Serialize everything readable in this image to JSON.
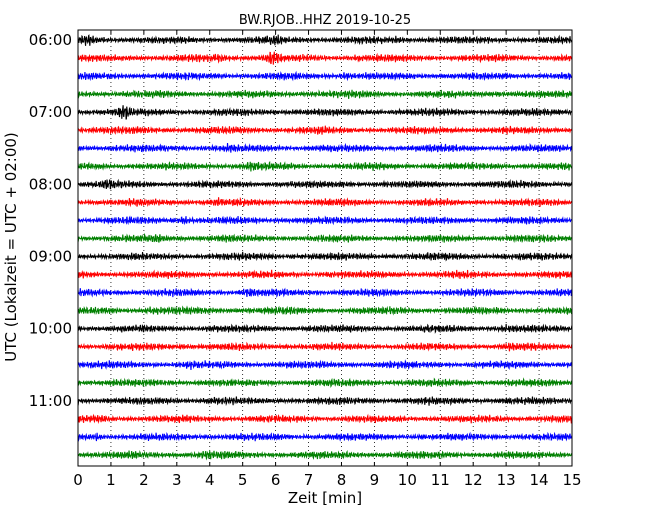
{
  "chart_data": {
    "type": "line",
    "title": "BW.RJOB..HHZ 2019-10-25",
    "xlabel": "Zeit  [min]",
    "ylabel": "UTC (Lokalzeit = UTC + 02:00)",
    "xlim": [
      0,
      15
    ],
    "x_ticks": [
      0,
      1,
      2,
      3,
      4,
      5,
      6,
      7,
      8,
      9,
      10,
      11,
      12,
      13,
      14,
      15
    ],
    "y_ticks": [
      "06:00",
      "07:00",
      "08:00",
      "09:00",
      "10:00",
      "11:00"
    ],
    "grid": "vertical dotted",
    "trace_minutes": 15,
    "start_time": "06:00",
    "traces": [
      {
        "time": "06:00",
        "color": "#000000",
        "events": [
          [
            0.3,
            1.8
          ],
          [
            6.0,
            1.5
          ],
          [
            9.7,
            1.2
          ],
          [
            1.3,
            0.9
          ]
        ]
      },
      {
        "time": "06:15",
        "color": "#ff0000",
        "events": [
          [
            5.9,
            2.4
          ],
          [
            4.3,
            1.4
          ],
          [
            8.5,
            1.1
          ]
        ]
      },
      {
        "time": "06:30",
        "color": "#0000ff",
        "events": [
          [
            8.1,
            1.3
          ],
          [
            1.6,
            0.9
          ]
        ]
      },
      {
        "time": "06:45",
        "color": "#008000",
        "events": [
          [
            12.8,
            1.2
          ],
          [
            7.0,
            1.0
          ]
        ]
      },
      {
        "time": "07:00",
        "color": "#000000",
        "events": [
          [
            1.4,
            2.2
          ],
          [
            6.6,
            1.1
          ],
          [
            13.7,
            1.0
          ]
        ]
      },
      {
        "time": "07:15",
        "color": "#ff0000",
        "events": [
          [
            7.4,
            1.0
          ],
          [
            3.8,
            0.9
          ]
        ]
      },
      {
        "time": "07:30",
        "color": "#0000ff",
        "events": [
          [
            4.6,
            1.2
          ],
          [
            10.6,
            1.0
          ]
        ]
      },
      {
        "time": "07:45",
        "color": "#008000",
        "events": [
          [
            5.3,
            1.4
          ],
          [
            2.2,
            0.9
          ]
        ]
      },
      {
        "time": "08:00",
        "color": "#000000",
        "events": [
          [
            0.9,
            1.6
          ],
          [
            8.2,
            1.1
          ]
        ]
      },
      {
        "time": "08:15",
        "color": "#ff0000",
        "events": [
          [
            4.2,
            1.3
          ],
          [
            12.2,
            1.0
          ]
        ]
      },
      {
        "time": "08:30",
        "color": "#0000ff",
        "events": [
          [
            3.2,
            1.6
          ],
          [
            6.2,
            1.1
          ],
          [
            8.0,
            1.0
          ]
        ]
      },
      {
        "time": "08:45",
        "color": "#008000",
        "events": [
          [
            2.4,
            1.4
          ],
          [
            9.6,
            1.0
          ]
        ]
      },
      {
        "time": "09:00",
        "color": "#000000",
        "events": [
          [
            6.5,
            1.0
          ],
          [
            11.2,
            0.9
          ]
        ]
      },
      {
        "time": "09:15",
        "color": "#ff0000",
        "events": [
          [
            1.7,
            1.0
          ],
          [
            7.6,
            1.1
          ]
        ]
      },
      {
        "time": "09:30",
        "color": "#0000ff",
        "events": [
          [
            5.2,
            1.6
          ],
          [
            14.0,
            0.9
          ]
        ]
      },
      {
        "time": "09:45",
        "color": "#008000",
        "events": [
          [
            2.3,
            1.3
          ],
          [
            10.3,
            0.9
          ]
        ]
      },
      {
        "time": "10:00",
        "color": "#000000",
        "events": [
          [
            4.0,
            1.1
          ],
          [
            13.0,
            1.3
          ]
        ]
      },
      {
        "time": "10:15",
        "color": "#ff0000",
        "events": [
          [
            3.2,
            1.2
          ],
          [
            13.2,
            1.4
          ],
          [
            5.6,
            1.0
          ]
        ]
      },
      {
        "time": "10:30",
        "color": "#0000ff",
        "events": [
          [
            3.4,
            1.3
          ],
          [
            7.4,
            1.0
          ]
        ]
      },
      {
        "time": "10:45",
        "color": "#008000",
        "events": [
          [
            1.1,
            1.0
          ],
          [
            8.9,
            1.1
          ]
        ]
      },
      {
        "time": "11:00",
        "color": "#000000",
        "events": [
          [
            4.1,
            1.3
          ],
          [
            13.1,
            1.1
          ],
          [
            10.6,
            1.0
          ]
        ]
      },
      {
        "time": "11:15",
        "color": "#ff0000",
        "events": [
          [
            0.7,
            1.3
          ],
          [
            6.7,
            1.0
          ]
        ]
      },
      {
        "time": "11:30",
        "color": "#0000ff",
        "events": [
          [
            0.6,
            1.4
          ],
          [
            9.1,
            1.0
          ]
        ]
      },
      {
        "time": "11:45",
        "color": "#008000",
        "events": [
          [
            3.9,
            1.4
          ],
          [
            11.0,
            1.0
          ]
        ]
      }
    ]
  }
}
